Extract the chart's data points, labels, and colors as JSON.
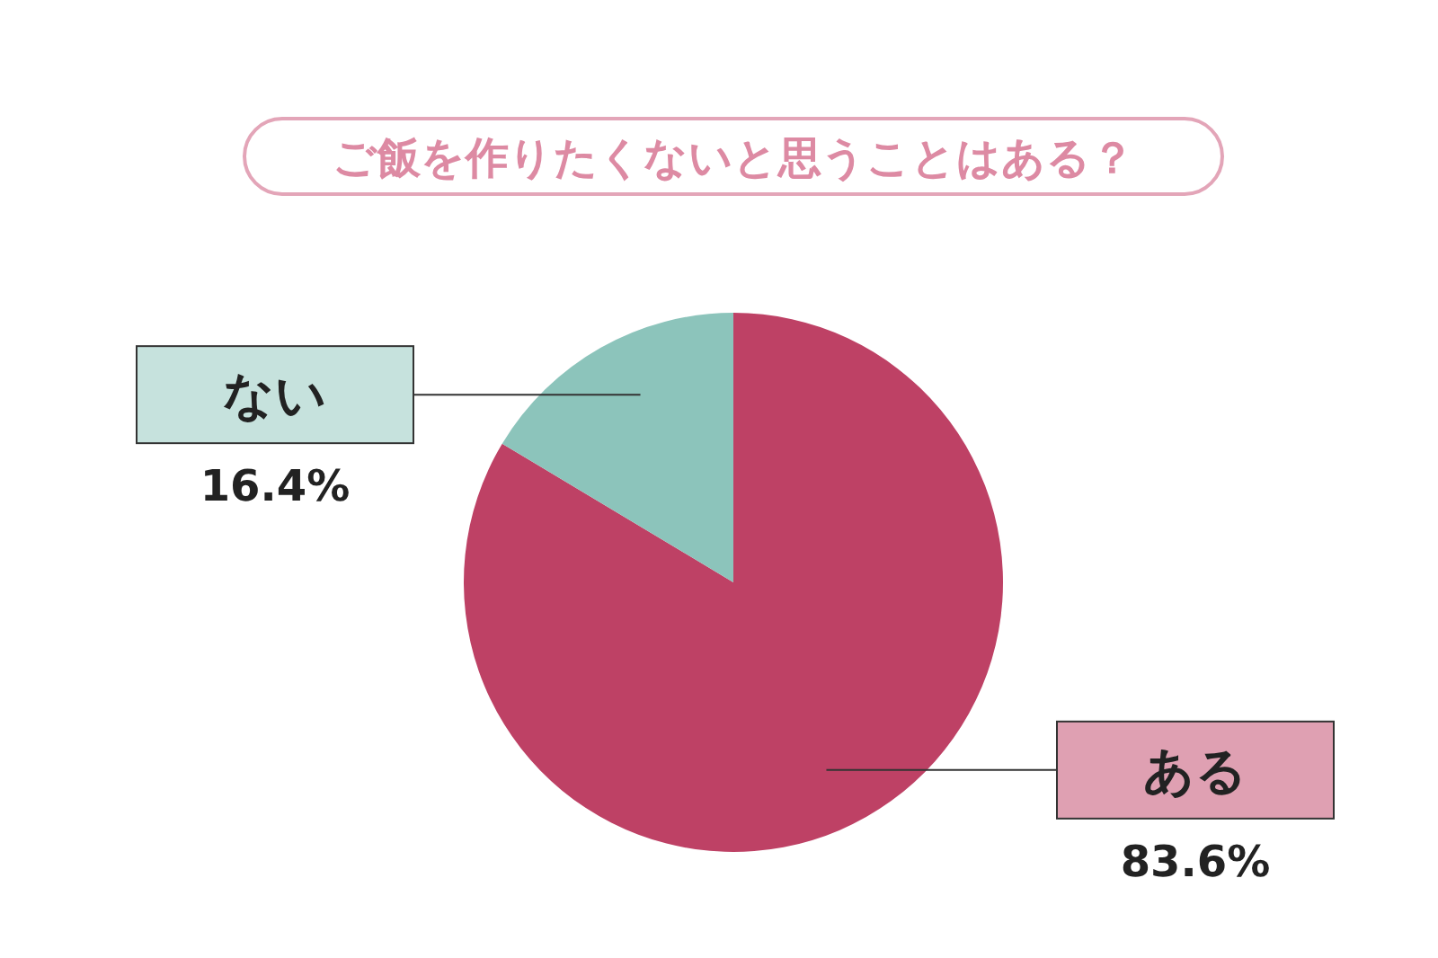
{
  "chart_data": {
    "type": "pie",
    "title": "ご飯を作りたくないと思うことはある？",
    "categories": [
      "ある",
      "ない"
    ],
    "values": [
      83.6,
      16.4
    ],
    "colors": [
      "#be4165",
      "#8cc4bb"
    ],
    "value_labels": [
      "83.6%",
      "16.4%"
    ]
  }
}
